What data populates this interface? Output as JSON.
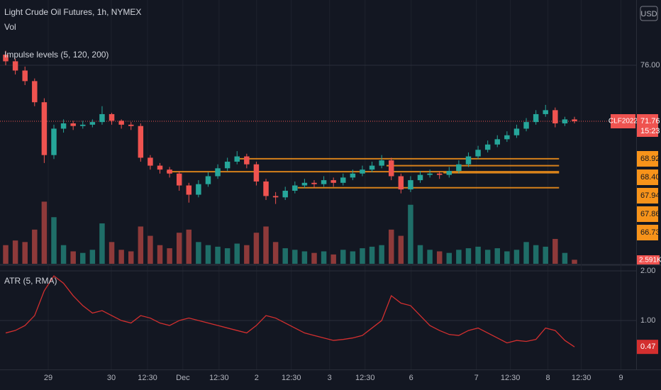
{
  "header": {
    "title": "Light Crude Oil Futures, 1h, NYMEX",
    "vol": "Vol",
    "indicator": "Impulse levels (5, 120, 200)",
    "currency": "USD"
  },
  "chart_data": [
    {
      "type": "candlestick",
      "up_color": "#26a69a",
      "down_color": "#ef5350",
      "xlim": [
        -0.59,
        65.4
      ],
      "xticks": [
        {
          "value": 4.41,
          "label": "29"
        },
        {
          "value": 10.96,
          "label": "30"
        },
        {
          "value": 14.71,
          "label": "12:30"
        },
        {
          "value": 18.38,
          "label": "Dec"
        },
        {
          "value": 22.13,
          "label": "12:30"
        },
        {
          "value": 26.03,
          "label": "2"
        },
        {
          "value": 29.63,
          "label": "12:30"
        },
        {
          "value": 33.6,
          "label": "3"
        },
        {
          "value": 37.28,
          "label": "12:30"
        },
        {
          "value": 42.06,
          "label": "6"
        },
        {
          "value": 48.82,
          "label": "7"
        },
        {
          "value": 52.35,
          "label": "12:30"
        },
        {
          "value": 56.25,
          "label": "8"
        },
        {
          "value": 59.71,
          "label": "12:30"
        },
        {
          "value": 63.82,
          "label": "9"
        }
      ],
      "ylim": [
        60.97,
        80.94
      ],
      "yticks": [
        {
          "value": 76,
          "label": "76.00"
        }
      ],
      "ohlc": [
        [
          76.8,
          77.1,
          76.0,
          76.3
        ],
        [
          76.3,
          76.5,
          75.3,
          75.6
        ],
        [
          75.6,
          75.9,
          74.5,
          74.8
        ],
        [
          74.8,
          75.0,
          72.9,
          73.2
        ],
        [
          73.2,
          73.5,
          68.6,
          69.2
        ],
        [
          69.2,
          71.5,
          68.9,
          71.2
        ],
        [
          71.2,
          71.9,
          70.9,
          71.6
        ],
        [
          71.6,
          71.8,
          71.1,
          71.4
        ],
        [
          71.4,
          71.8,
          71.2,
          71.5
        ],
        [
          71.5,
          71.9,
          71.3,
          71.7
        ],
        [
          71.7,
          72.9,
          71.5,
          72.3
        ],
        [
          72.3,
          72.4,
          71.5,
          71.8
        ],
        [
          71.8,
          71.9,
          71.2,
          71.5
        ],
        [
          71.5,
          71.7,
          71.1,
          71.4
        ],
        [
          71.4,
          71.6,
          68.7,
          69.0
        ],
        [
          69.0,
          69.2,
          68.1,
          68.4
        ],
        [
          68.4,
          68.6,
          67.8,
          68.1
        ],
        [
          68.1,
          68.3,
          67.5,
          67.8
        ],
        [
          67.8,
          68.0,
          66.5,
          66.9
        ],
        [
          66.9,
          67.1,
          65.6,
          66.2
        ],
        [
          66.2,
          67.3,
          66.0,
          67.0
        ],
        [
          67.0,
          67.9,
          66.8,
          67.6
        ],
        [
          67.6,
          68.5,
          67.4,
          68.2
        ],
        [
          68.2,
          69.0,
          68.0,
          68.7
        ],
        [
          68.7,
          69.5,
          68.5,
          69.1
        ],
        [
          69.1,
          69.3,
          68.2,
          68.5
        ],
        [
          68.5,
          68.7,
          66.9,
          67.2
        ],
        [
          67.2,
          67.4,
          65.8,
          66.1
        ],
        [
          66.1,
          66.4,
          65.5,
          66.0
        ],
        [
          66.0,
          66.8,
          65.8,
          66.5
        ],
        [
          66.5,
          67.2,
          66.3,
          66.9
        ],
        [
          66.9,
          67.4,
          66.7,
          67.1
        ],
        [
          67.1,
          67.3,
          66.7,
          67.0
        ],
        [
          67.0,
          67.6,
          66.8,
          67.3
        ],
        [
          67.3,
          67.5,
          66.8,
          67.1
        ],
        [
          67.1,
          67.8,
          66.9,
          67.5
        ],
        [
          67.5,
          68.1,
          67.3,
          67.8
        ],
        [
          67.8,
          68.4,
          67.6,
          68.1
        ],
        [
          68.1,
          68.7,
          67.9,
          68.4
        ],
        [
          68.4,
          69.2,
          68.2,
          68.8
        ],
        [
          68.8,
          69.0,
          67.3,
          67.6
        ],
        [
          67.6,
          67.8,
          66.3,
          66.6
        ],
        [
          66.6,
          67.6,
          66.4,
          67.3
        ],
        [
          67.3,
          68.0,
          67.1,
          67.7
        ],
        [
          67.7,
          68.1,
          67.5,
          67.8
        ],
        [
          67.8,
          68.0,
          67.4,
          67.7
        ],
        [
          67.7,
          68.3,
          67.5,
          68.0
        ],
        [
          68.0,
          68.8,
          67.8,
          68.5
        ],
        [
          68.5,
          69.4,
          68.3,
          69.1
        ],
        [
          69.1,
          69.9,
          68.9,
          69.6
        ],
        [
          69.6,
          70.3,
          69.4,
          70.0
        ],
        [
          70.0,
          70.7,
          69.8,
          70.4
        ],
        [
          70.4,
          71.0,
          70.2,
          70.7
        ],
        [
          70.7,
          71.5,
          70.5,
          71.2
        ],
        [
          71.2,
          72.0,
          71.0,
          71.7
        ],
        [
          71.7,
          72.6,
          71.5,
          72.3
        ],
        [
          72.3,
          73.0,
          72.1,
          72.6
        ],
        [
          72.6,
          72.8,
          71.3,
          71.6
        ],
        [
          71.6,
          72.1,
          71.4,
          71.9
        ],
        [
          71.9,
          72.1,
          71.6,
          71.76
        ]
      ],
      "last": {
        "symbol": "CLF2022",
        "value": 71.76,
        "label": "71.76",
        "countdown": "15:23",
        "color": "#ef5350"
      },
      "level_color": "#f7931a",
      "levels_to": 57.4,
      "levels": [
        {
          "value": 68.92,
          "label": "68.92",
          "from": 24
        },
        {
          "value": 68.4,
          "label": "68.40",
          "from": 39.5
        },
        {
          "value": 67.94,
          "label": "67.94",
          "from": 16.7
        },
        {
          "value": 67.86,
          "label": "67.86",
          "from": 45.4
        },
        {
          "value": 66.73,
          "label": "66.73",
          "from": 30.3
        }
      ]
    },
    {
      "type": "bar",
      "name": "Vol",
      "ylim": [
        0,
        42000
      ],
      "values": [
        12000,
        15000,
        14000,
        22000,
        40000,
        30000,
        12000,
        8000,
        7000,
        9000,
        26000,
        14000,
        9000,
        8000,
        24000,
        18000,
        12000,
        10000,
        20000,
        22000,
        14000,
        12000,
        11000,
        10000,
        13000,
        12000,
        20000,
        24000,
        14000,
        10000,
        9000,
        8000,
        7000,
        8000,
        6000,
        9000,
        8000,
        10000,
        11000,
        12000,
        22000,
        18000,
        38000,
        12000,
        9000,
        8000,
        7000,
        9000,
        10000,
        11000,
        9000,
        10000,
        8000,
        9000,
        14000,
        12000,
        11000,
        16000,
        7000,
        2591
      ],
      "last_label": "2.591K",
      "up_color": "#1f6e68",
      "down_color": "#8e3a3a"
    },
    {
      "type": "line",
      "title": "ATR (5, RMA)",
      "color": "#d32f2f",
      "ylim": [
        0.03,
        2.1
      ],
      "yticks": [
        {
          "value": 2,
          "label": "2.00"
        },
        {
          "value": 1,
          "label": "1.00"
        }
      ],
      "values": [
        0.75,
        0.8,
        0.9,
        1.1,
        1.6,
        1.9,
        1.75,
        1.5,
        1.3,
        1.15,
        1.2,
        1.1,
        1.0,
        0.95,
        1.1,
        1.05,
        0.95,
        0.9,
        1.0,
        1.05,
        1.0,
        0.95,
        0.9,
        0.85,
        0.8,
        0.75,
        0.9,
        1.1,
        1.05,
        0.95,
        0.85,
        0.75,
        0.7,
        0.65,
        0.6,
        0.62,
        0.65,
        0.7,
        0.85,
        1.0,
        1.5,
        1.35,
        1.3,
        1.1,
        0.9,
        0.8,
        0.72,
        0.7,
        0.8,
        0.85,
        0.75,
        0.65,
        0.55,
        0.6,
        0.58,
        0.62,
        0.85,
        0.8,
        0.6,
        0.47
      ],
      "last_label": "0.47"
    }
  ]
}
